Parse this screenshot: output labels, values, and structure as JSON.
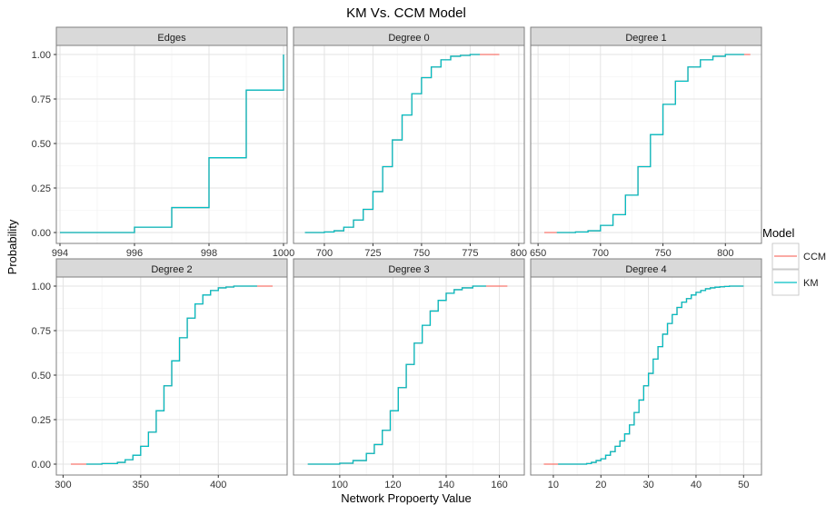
{
  "title": "KM Vs. CCM Model",
  "xlabel": "Network Propoerty Value",
  "ylabel": "Probability",
  "legend": {
    "title": "Model",
    "placement": "right",
    "entries": [
      {
        "name": "CCM",
        "color": "#F8766D"
      },
      {
        "name": "KM",
        "color": "#00BFC4"
      }
    ]
  },
  "chart_data": [
    {
      "type": "line",
      "facet": "Edges",
      "title": "Edges",
      "xlim": [
        994,
        1000
      ],
      "ylim": [
        0,
        1
      ],
      "xticks": [
        994,
        996,
        998,
        1000
      ],
      "xtick_labels": [
        "994",
        "996",
        "998",
        "1000"
      ],
      "yticks": [
        0,
        0.25,
        0.5,
        0.75,
        1
      ],
      "ytick_labels": [
        "0.00",
        "0.25",
        "0.50",
        "0.75",
        "1.00"
      ],
      "grid": true,
      "step": true,
      "series": [
        {
          "name": "CCM",
          "x": [
            994,
            996,
            997,
            998,
            999,
            1000
          ],
          "y": [
            0,
            0.03,
            0.14,
            0.42,
            0.8,
            1.0
          ]
        },
        {
          "name": "KM",
          "x": [
            994,
            996,
            997,
            998,
            999,
            1000
          ],
          "y": [
            0,
            0.03,
            0.14,
            0.42,
            0.8,
            1.0
          ]
        }
      ]
    },
    {
      "type": "line",
      "facet": "Degree 0",
      "title": "Degree 0",
      "xlim": [
        686,
        801
      ],
      "ylim": [
        0,
        1
      ],
      "xticks": [
        700,
        725,
        750,
        775,
        800
      ],
      "xtick_labels": [
        "700",
        "725",
        "750",
        "775",
        "800"
      ],
      "yticks": [
        0,
        0.25,
        0.5,
        0.75,
        1
      ],
      "ytick_labels": [
        "0.00",
        "0.25",
        "0.50",
        "0.75",
        "1.00"
      ],
      "grid": true,
      "step": true,
      "series": [
        {
          "name": "CCM",
          "x": [
            690,
            700,
            705,
            710,
            715,
            720,
            725,
            730,
            735,
            740,
            745,
            750,
            755,
            760,
            765,
            770,
            775,
            780,
            785,
            790
          ],
          "y": [
            0.0,
            0.003,
            0.01,
            0.03,
            0.07,
            0.13,
            0.23,
            0.37,
            0.52,
            0.66,
            0.78,
            0.87,
            0.93,
            0.97,
            0.99,
            0.995,
            1.0,
            1.0,
            1.0,
            1.0
          ]
        },
        {
          "name": "KM",
          "x": [
            690,
            700,
            705,
            710,
            715,
            720,
            725,
            730,
            735,
            740,
            745,
            750,
            755,
            760,
            765,
            770,
            775,
            780
          ],
          "y": [
            0.0,
            0.003,
            0.01,
            0.03,
            0.07,
            0.13,
            0.23,
            0.37,
            0.52,
            0.66,
            0.78,
            0.87,
            0.93,
            0.97,
            0.99,
            0.995,
            1.0,
            1.0
          ]
        }
      ]
    },
    {
      "type": "line",
      "facet": "Degree 1",
      "title": "Degree 1",
      "xlim": [
        647,
        826
      ],
      "ylim": [
        0,
        1
      ],
      "xticks": [
        650,
        700,
        750,
        800
      ],
      "xtick_labels": [
        "650",
        "700",
        "750",
        "800"
      ],
      "yticks": [
        0,
        0.25,
        0.5,
        0.75,
        1
      ],
      "ytick_labels": [
        "0.00",
        "0.25",
        "0.50",
        "0.75",
        "1.00"
      ],
      "grid": true,
      "step": true,
      "series": [
        {
          "name": "CCM",
          "x": [
            655,
            670,
            680,
            690,
            700,
            710,
            720,
            730,
            740,
            750,
            760,
            770,
            780,
            790,
            800,
            810,
            820
          ],
          "y": [
            0.0,
            0.0,
            0.003,
            0.01,
            0.04,
            0.1,
            0.21,
            0.37,
            0.55,
            0.72,
            0.85,
            0.93,
            0.97,
            0.99,
            1.0,
            1.0,
            1.0
          ]
        },
        {
          "name": "KM",
          "x": [
            665,
            680,
            690,
            700,
            710,
            720,
            730,
            740,
            750,
            760,
            770,
            780,
            790,
            800,
            810,
            815
          ],
          "y": [
            0.0,
            0.003,
            0.01,
            0.04,
            0.1,
            0.21,
            0.37,
            0.55,
            0.72,
            0.85,
            0.93,
            0.97,
            0.99,
            1.0,
            1.0,
            1.0
          ]
        }
      ]
    },
    {
      "type": "line",
      "facet": "Degree 2",
      "title": "Degree 2",
      "xlim": [
        298,
        442
      ],
      "ylim": [
        0,
        1
      ],
      "xticks": [
        300,
        350,
        400
      ],
      "xtick_labels": [
        "300",
        "350",
        "400"
      ],
      "yticks": [
        0,
        0.25,
        0.5,
        0.75,
        1
      ],
      "ytick_labels": [
        "0.00",
        "0.25",
        "0.50",
        "0.75",
        "1.00"
      ],
      "grid": true,
      "step": true,
      "series": [
        {
          "name": "CCM",
          "x": [
            305,
            315,
            325,
            335,
            340,
            345,
            350,
            355,
            360,
            365,
            370,
            375,
            380,
            385,
            390,
            395,
            400,
            405,
            410,
            420,
            435
          ],
          "y": [
            0.0,
            0.0,
            0.003,
            0.01,
            0.025,
            0.05,
            0.1,
            0.18,
            0.3,
            0.44,
            0.58,
            0.71,
            0.82,
            0.9,
            0.95,
            0.975,
            0.99,
            0.995,
            1.0,
            1.0,
            1.0
          ]
        },
        {
          "name": "KM",
          "x": [
            315,
            325,
            335,
            340,
            345,
            350,
            355,
            360,
            365,
            370,
            375,
            380,
            385,
            390,
            395,
            400,
            405,
            410,
            425
          ],
          "y": [
            0.0,
            0.003,
            0.01,
            0.025,
            0.05,
            0.1,
            0.18,
            0.3,
            0.44,
            0.58,
            0.71,
            0.82,
            0.9,
            0.95,
            0.975,
            0.99,
            0.995,
            1.0,
            1.0
          ]
        }
      ]
    },
    {
      "type": "line",
      "facet": "Degree 3",
      "title": "Degree 3",
      "xlim": [
        84,
        168
      ],
      "ylim": [
        0,
        1
      ],
      "xticks": [
        100,
        120,
        140,
        160
      ],
      "xtick_labels": [
        "100",
        "120",
        "140",
        "160"
      ],
      "yticks": [
        0,
        0.25,
        0.5,
        0.75,
        1
      ],
      "ytick_labels": [
        "0.00",
        "0.25",
        "0.50",
        "0.75",
        "1.00"
      ],
      "grid": true,
      "step": true,
      "series": [
        {
          "name": "CCM",
          "x": [
            88,
            95,
            100,
            105,
            110,
            113,
            116,
            119,
            122,
            125,
            128,
            131,
            134,
            137,
            140,
            143,
            146,
            150,
            155,
            163
          ],
          "y": [
            0.0,
            0.0,
            0.005,
            0.02,
            0.06,
            0.11,
            0.19,
            0.3,
            0.43,
            0.56,
            0.68,
            0.78,
            0.86,
            0.92,
            0.96,
            0.98,
            0.99,
            1.0,
            1.0,
            1.0
          ]
        },
        {
          "name": "KM",
          "x": [
            88,
            95,
            100,
            105,
            110,
            113,
            116,
            119,
            122,
            125,
            128,
            131,
            134,
            137,
            140,
            143,
            146,
            150,
            155
          ],
          "y": [
            0.0,
            0.0,
            0.005,
            0.02,
            0.06,
            0.11,
            0.19,
            0.3,
            0.43,
            0.56,
            0.68,
            0.78,
            0.86,
            0.92,
            0.96,
            0.98,
            0.99,
            1.0,
            1.0
          ]
        }
      ]
    },
    {
      "type": "line",
      "facet": "Degree 4",
      "title": "Degree 4",
      "xlim": [
        6,
        53
      ],
      "ylim": [
        0,
        1
      ],
      "xticks": [
        10,
        20,
        30,
        40,
        50
      ],
      "xtick_labels": [
        "10",
        "20",
        "30",
        "40",
        "50"
      ],
      "yticks": [
        0,
        0.25,
        0.5,
        0.75,
        1
      ],
      "ytick_labels": [
        "0.00",
        "0.25",
        "0.50",
        "0.75",
        "1.00"
      ],
      "grid": true,
      "step": true,
      "series": [
        {
          "name": "CCM",
          "x": [
            8,
            17,
            18,
            19,
            20,
            21,
            22,
            23,
            24,
            25,
            26,
            27,
            28,
            29,
            30,
            31,
            32,
            33,
            34,
            35,
            36,
            37,
            38,
            39,
            40,
            41,
            42,
            43,
            44,
            45,
            46,
            47,
            48,
            49,
            50
          ],
          "y": [
            0.0,
            0.003,
            0.01,
            0.02,
            0.03,
            0.05,
            0.07,
            0.1,
            0.13,
            0.17,
            0.22,
            0.29,
            0.36,
            0.44,
            0.51,
            0.59,
            0.66,
            0.73,
            0.79,
            0.84,
            0.88,
            0.91,
            0.93,
            0.95,
            0.965,
            0.975,
            0.985,
            0.99,
            0.994,
            0.996,
            0.998,
            1.0,
            1.0,
            1.0,
            1.0
          ]
        },
        {
          "name": "KM",
          "x": [
            11,
            17,
            18,
            19,
            20,
            21,
            22,
            23,
            24,
            25,
            26,
            27,
            28,
            29,
            30,
            31,
            32,
            33,
            34,
            35,
            36,
            37,
            38,
            39,
            40,
            41,
            42,
            43,
            44,
            45,
            46,
            47,
            48,
            49,
            50
          ],
          "y": [
            0.0,
            0.003,
            0.01,
            0.02,
            0.03,
            0.05,
            0.07,
            0.1,
            0.13,
            0.17,
            0.22,
            0.29,
            0.36,
            0.44,
            0.51,
            0.59,
            0.66,
            0.73,
            0.79,
            0.84,
            0.88,
            0.91,
            0.93,
            0.95,
            0.965,
            0.975,
            0.985,
            0.99,
            0.994,
            0.996,
            0.998,
            1.0,
            1.0,
            1.0,
            1.0
          ]
        }
      ]
    }
  ]
}
